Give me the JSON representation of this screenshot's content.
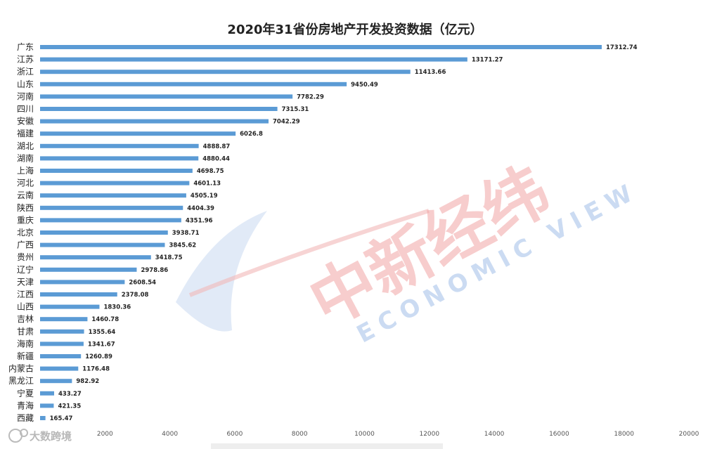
{
  "chart_data": {
    "type": "bar",
    "orientation": "horizontal",
    "title": "2020年31省份房地产开发投资数据（亿元）",
    "categories": [
      "广东",
      "江苏",
      "浙江",
      "山东",
      "河南",
      "四川",
      "安徽",
      "福建",
      "湖北",
      "湖南",
      "上海",
      "河北",
      "云南",
      "陕西",
      "重庆",
      "北京",
      "广西",
      "贵州",
      "辽宁",
      "天津",
      "江西",
      "山西",
      "吉林",
      "甘肃",
      "海南",
      "新疆",
      "内蒙古",
      "黑龙江",
      "宁夏",
      "青海",
      "西藏"
    ],
    "values": [
      17312.74,
      13171.27,
      11413.66,
      9450.49,
      7782.29,
      7315.31,
      7042.29,
      6026.8,
      4888.87,
      4880.44,
      4698.75,
      4601.13,
      4505.19,
      4404.39,
      4351.96,
      3938.71,
      3845.62,
      3418.75,
      2978.86,
      2608.54,
      2378.08,
      1830.36,
      1460.78,
      1355.64,
      1341.67,
      1260.89,
      1176.48,
      982.92,
      433.27,
      421.35,
      165.47
    ],
    "value_labels": [
      "17312.74",
      "13171.27",
      "11413.66",
      "9450.49",
      "7782.29",
      "7315.31",
      "7042.29",
      "6026.8",
      "4888.87",
      "4880.44",
      "4698.75",
      "4601.13",
      "4505.19",
      "4404.39",
      "4351.96",
      "3938.71",
      "3845.62",
      "3418.75",
      "2978.86",
      "2608.54",
      "2378.08",
      "1830.36",
      "1460.78",
      "1355.64",
      "1341.67",
      "1260.89",
      "1176.48",
      "982.92",
      "433.27",
      "421.35",
      "165.47"
    ],
    "xticks": [
      "2000",
      "4000",
      "6000",
      "8000",
      "10000",
      "12000",
      "14000",
      "16000",
      "18000",
      "20000"
    ],
    "xlim": [
      0,
      20000
    ],
    "grid": false,
    "bar_color": "#5b9bd5"
  },
  "watermark": {
    "cn": "中新经纬",
    "en": "ECONOMIC VIEW"
  },
  "brand": {
    "name": "大数跨境"
  }
}
